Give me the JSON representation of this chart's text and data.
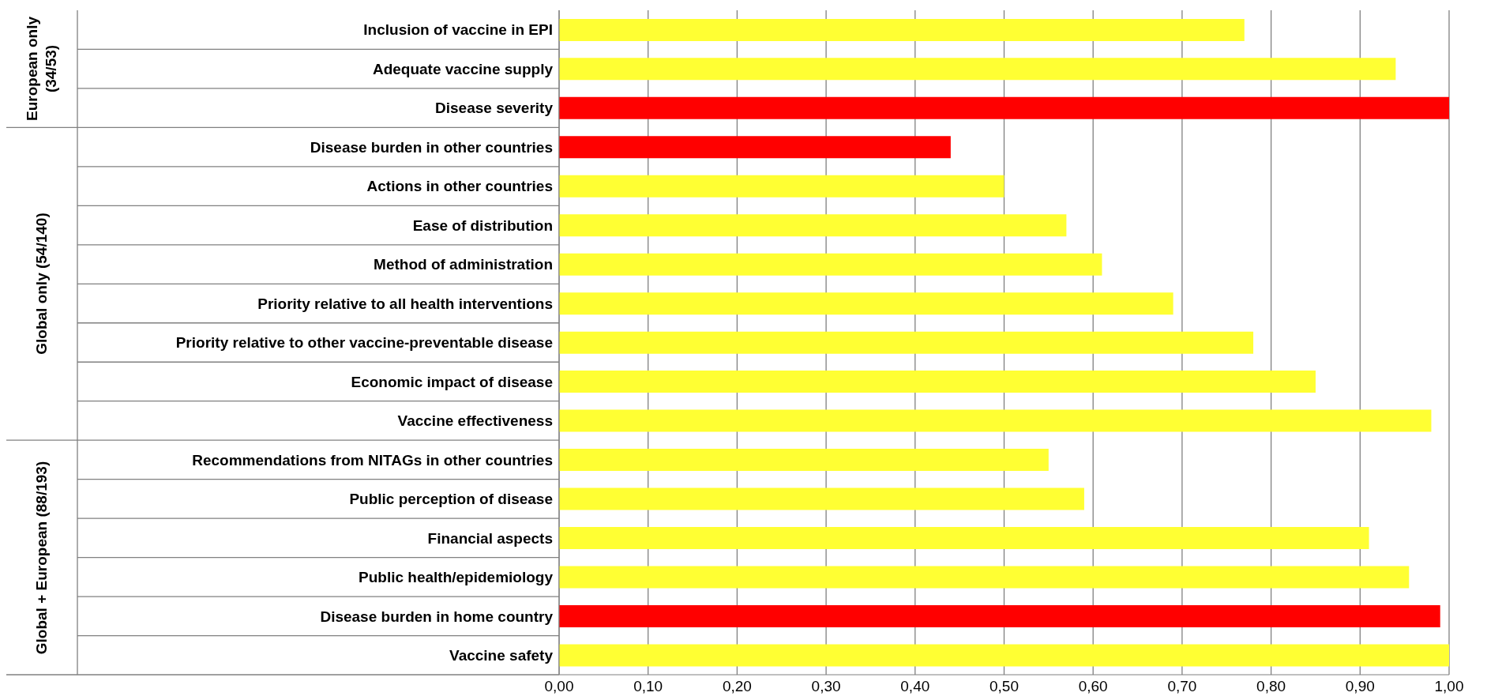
{
  "chart_data": {
    "type": "bar",
    "orientation": "horizontal",
    "categories": [
      "Inclusion of vaccine in EPI",
      "Adequate vaccine supply",
      "Disease severity",
      "Disease burden in other countries",
      "Actions in other countries",
      "Ease of distribution",
      "Method of administration",
      "Priority relative to all health interventions",
      "Priority relative to other vaccine-preventable disease",
      "Economic impact of disease",
      "Vaccine effectiveness",
      "Recommendations from NITAGs in other countries",
      "Public perception of disease",
      "Financial aspects",
      "Public health/epidemiology",
      "Disease burden in home country",
      "Vaccine safety"
    ],
    "values": [
      0.77,
      0.94,
      1.0,
      0.44,
      0.5,
      0.57,
      0.61,
      0.69,
      0.78,
      0.85,
      0.98,
      0.55,
      0.59,
      0.91,
      0.955,
      0.99,
      1.0
    ],
    "colors": [
      "#ffff33",
      "#ffff33",
      "#ff0000",
      "#ff0000",
      "#ffff33",
      "#ffff33",
      "#ffff33",
      "#ffff33",
      "#ffff33",
      "#ffff33",
      "#ffff33",
      "#ffff33",
      "#ffff33",
      "#ffff33",
      "#ffff33",
      "#ff0000",
      "#ffff33"
    ],
    "xlim": [
      0,
      1
    ],
    "xticks": [
      {
        "value": 0,
        "label": "0,00"
      },
      {
        "value": 0.1,
        "label": "0,10"
      },
      {
        "value": 0.2,
        "label": "0,20"
      },
      {
        "value": 0.3,
        "label": "0,30"
      },
      {
        "value": 0.4,
        "label": "0,40"
      },
      {
        "value": 0.5,
        "label": "0,50"
      },
      {
        "value": 0.6,
        "label": "0,60"
      },
      {
        "value": 0.7,
        "label": "0,70"
      },
      {
        "value": 0.8,
        "label": "0,80"
      },
      {
        "value": 0.9,
        "label": "0,90"
      },
      {
        "value": 1,
        "label": "1,00"
      }
    ],
    "grid": "x",
    "annotations": [
      "European only (34/53)",
      "Global only (54/140)",
      "Global + European (88/193)"
    ]
  }
}
